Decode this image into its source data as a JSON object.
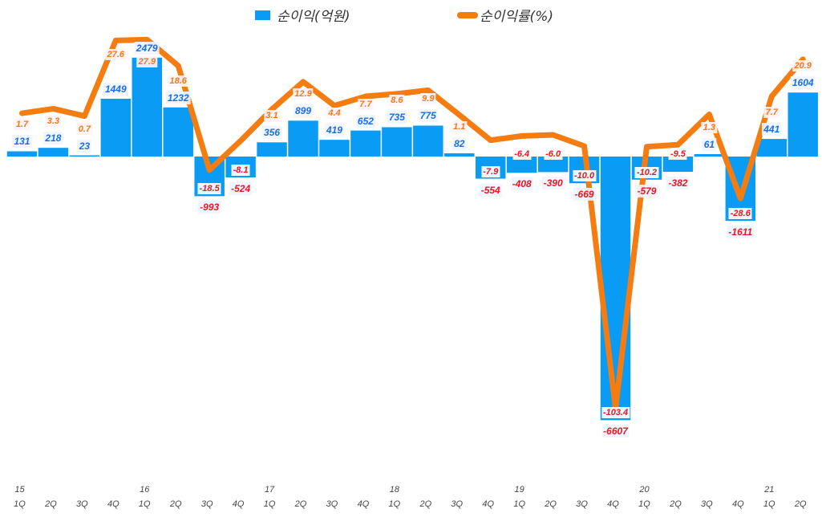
{
  "legend": {
    "bar_label": "순이익(억원)",
    "line_label": "순이익률(%)"
  },
  "colors": {
    "bar": "#0a9bf5",
    "line": "#f47c10",
    "positive_label": "#1a6fe0",
    "negative_label": "#e8161f",
    "pct_label": "#f07a1a"
  },
  "chart_data": {
    "type": "bar+line",
    "title": "",
    "xlabel": "",
    "ylabel": "",
    "categories": [
      "15 1Q",
      "2Q",
      "3Q",
      "4Q",
      "16 1Q",
      "2Q",
      "3Q",
      "4Q",
      "17 1Q",
      "2Q",
      "3Q",
      "4Q",
      "18 1Q",
      "2Q",
      "3Q",
      "4Q",
      "19 1Q",
      "2Q",
      "3Q",
      "4Q",
      "20 1Q",
      "2Q",
      "3Q",
      "4Q",
      "21 1Q",
      "2Q"
    ],
    "x_quarters": [
      "1Q",
      "2Q",
      "3Q",
      "4Q",
      "1Q",
      "2Q",
      "3Q",
      "4Q",
      "1Q",
      "2Q",
      "3Q",
      "4Q",
      "1Q",
      "2Q",
      "3Q",
      "4Q",
      "1Q",
      "2Q",
      "3Q",
      "4Q",
      "1Q",
      "2Q",
      "3Q",
      "4Q",
      "1Q",
      "2Q"
    ],
    "x_years": [
      "15",
      "",
      "",
      "",
      "16",
      "",
      "",
      "",
      "17",
      "",
      "",
      "",
      "18",
      "",
      "",
      "",
      "19",
      "",
      "",
      "",
      "20",
      "",
      "",
      "",
      "21",
      ""
    ],
    "series": [
      {
        "name": "순이익(억원)",
        "type": "bar",
        "values": [
          131,
          218,
          23,
          1449,
          2479,
          1232,
          -993,
          -524,
          356,
          899,
          419,
          652,
          735,
          775,
          82,
          -554,
          -408,
          -390,
          -669,
          -6607,
          -579,
          -382,
          61,
          -1611,
          441,
          1604
        ]
      },
      {
        "name": "순이익률(%)",
        "type": "line",
        "values": [
          1.7,
          3.3,
          0.7,
          27.6,
          27.9,
          18.6,
          -18.5,
          -8.1,
          3.1,
          12.9,
          4.4,
          7.7,
          8.6,
          9.9,
          1.1,
          -7.9,
          -6.4,
          -6.0,
          -10.0,
          -103.4,
          -10.2,
          -9.5,
          1.3,
          -28.6,
          7.7,
          20.9
        ]
      }
    ],
    "grid": false,
    "legend_position": "top"
  }
}
